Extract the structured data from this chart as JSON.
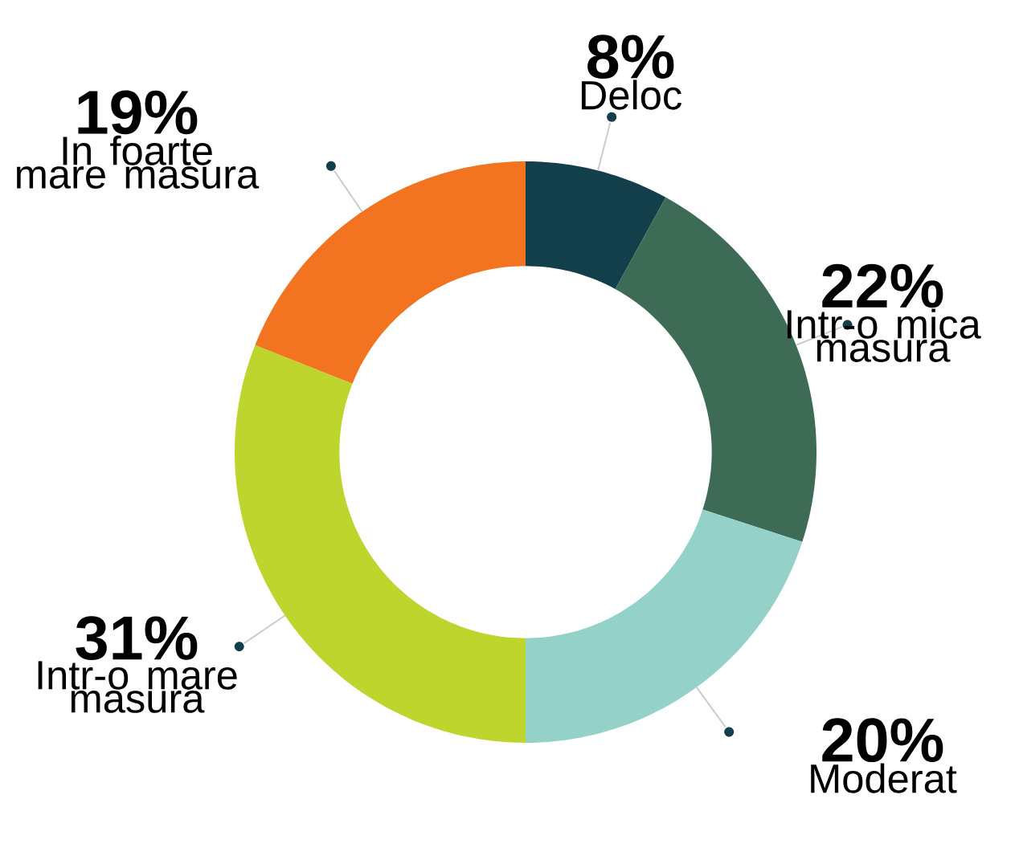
{
  "chart_data": {
    "type": "donut",
    "categories": [
      "Deloc",
      "Intr-o mica masura",
      "Moderat",
      "Intr-o mare masura",
      "In foarte mare masura"
    ],
    "values": [
      8,
      22,
      20,
      31,
      19
    ],
    "colors": [
      "#123f4a",
      "#3d6b56",
      "#94d2c9",
      "#bdd52d",
      "#f37420"
    ],
    "value_labels": [
      "8%",
      "22%",
      "20%",
      "31%",
      "19%"
    ]
  }
}
